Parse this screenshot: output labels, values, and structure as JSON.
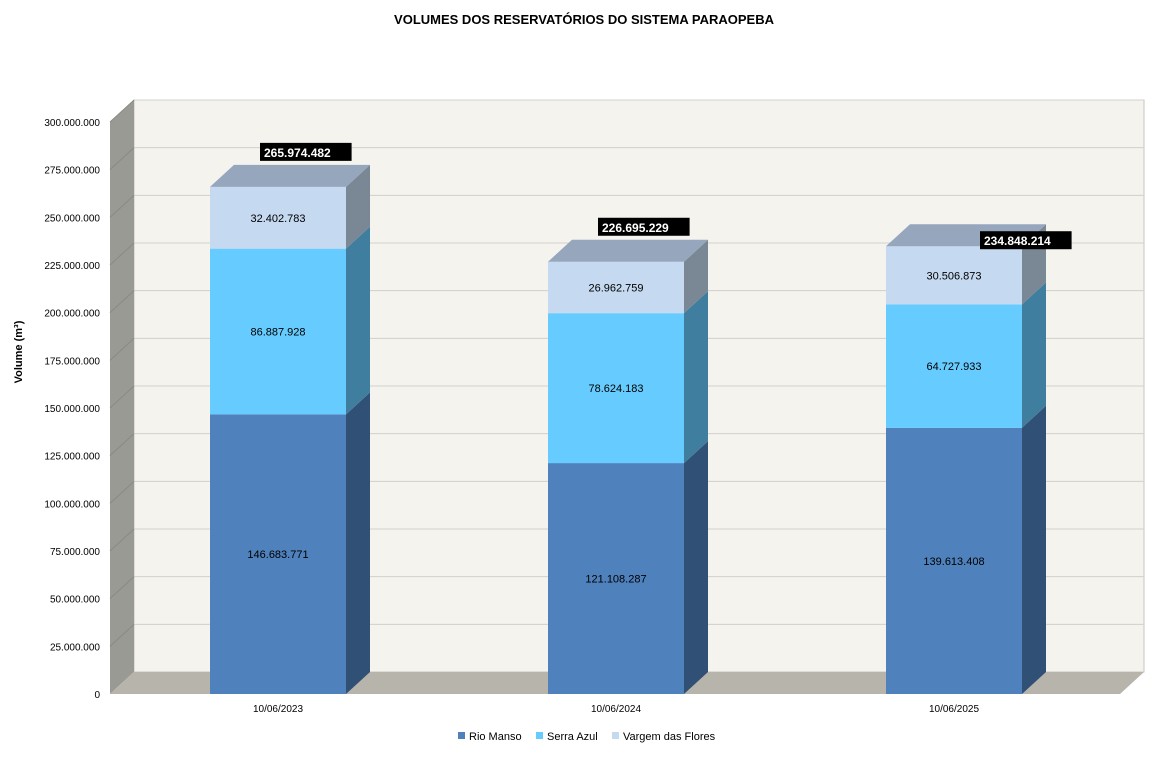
{
  "chart_data": {
    "type": "bar",
    "stacked": true,
    "three_d": true,
    "title": "VOLUMES DOS RESERVATÓRIOS DO SISTEMA PARAOPEBA",
    "ylabel": "Volume (m³)",
    "xlabel": "",
    "ylim": [
      0,
      300000000
    ],
    "ytick_step": 25000000,
    "yticks": [
      "0",
      "25.000.000",
      "50.000.000",
      "75.000.000",
      "100.000.000",
      "125.000.000",
      "150.000.000",
      "175.000.000",
      "200.000.000",
      "225.000.000",
      "250.000.000",
      "275.000.000",
      "300.000.000"
    ],
    "categories": [
      "10/06/2023",
      "10/06/2024",
      "10/06/2025"
    ],
    "series": [
      {
        "name": "Rio Manso",
        "values": [
          146683771,
          121108287,
          139613408
        ],
        "labels": [
          "146.683.771",
          "121.108.287",
          "139.613.408"
        ],
        "color": "#4f81bd"
      },
      {
        "name": "Serra Azul",
        "values": [
          86887928,
          78624183,
          64727933
        ],
        "labels": [
          "86.887.928",
          "78.624.183",
          "64.727.933"
        ],
        "color": "#66ccff"
      },
      {
        "name": "Vargem das Flores",
        "values": [
          32402783,
          26962759,
          30506873
        ],
        "labels": [
          "32.402.783",
          "26.962.759",
          "30.506.873"
        ],
        "color": "#c5d9f1"
      }
    ],
    "totals": [
      "265.974.482",
      "226.695.229",
      "234.848.214"
    ],
    "legend": "bottom",
    "grid": true
  }
}
